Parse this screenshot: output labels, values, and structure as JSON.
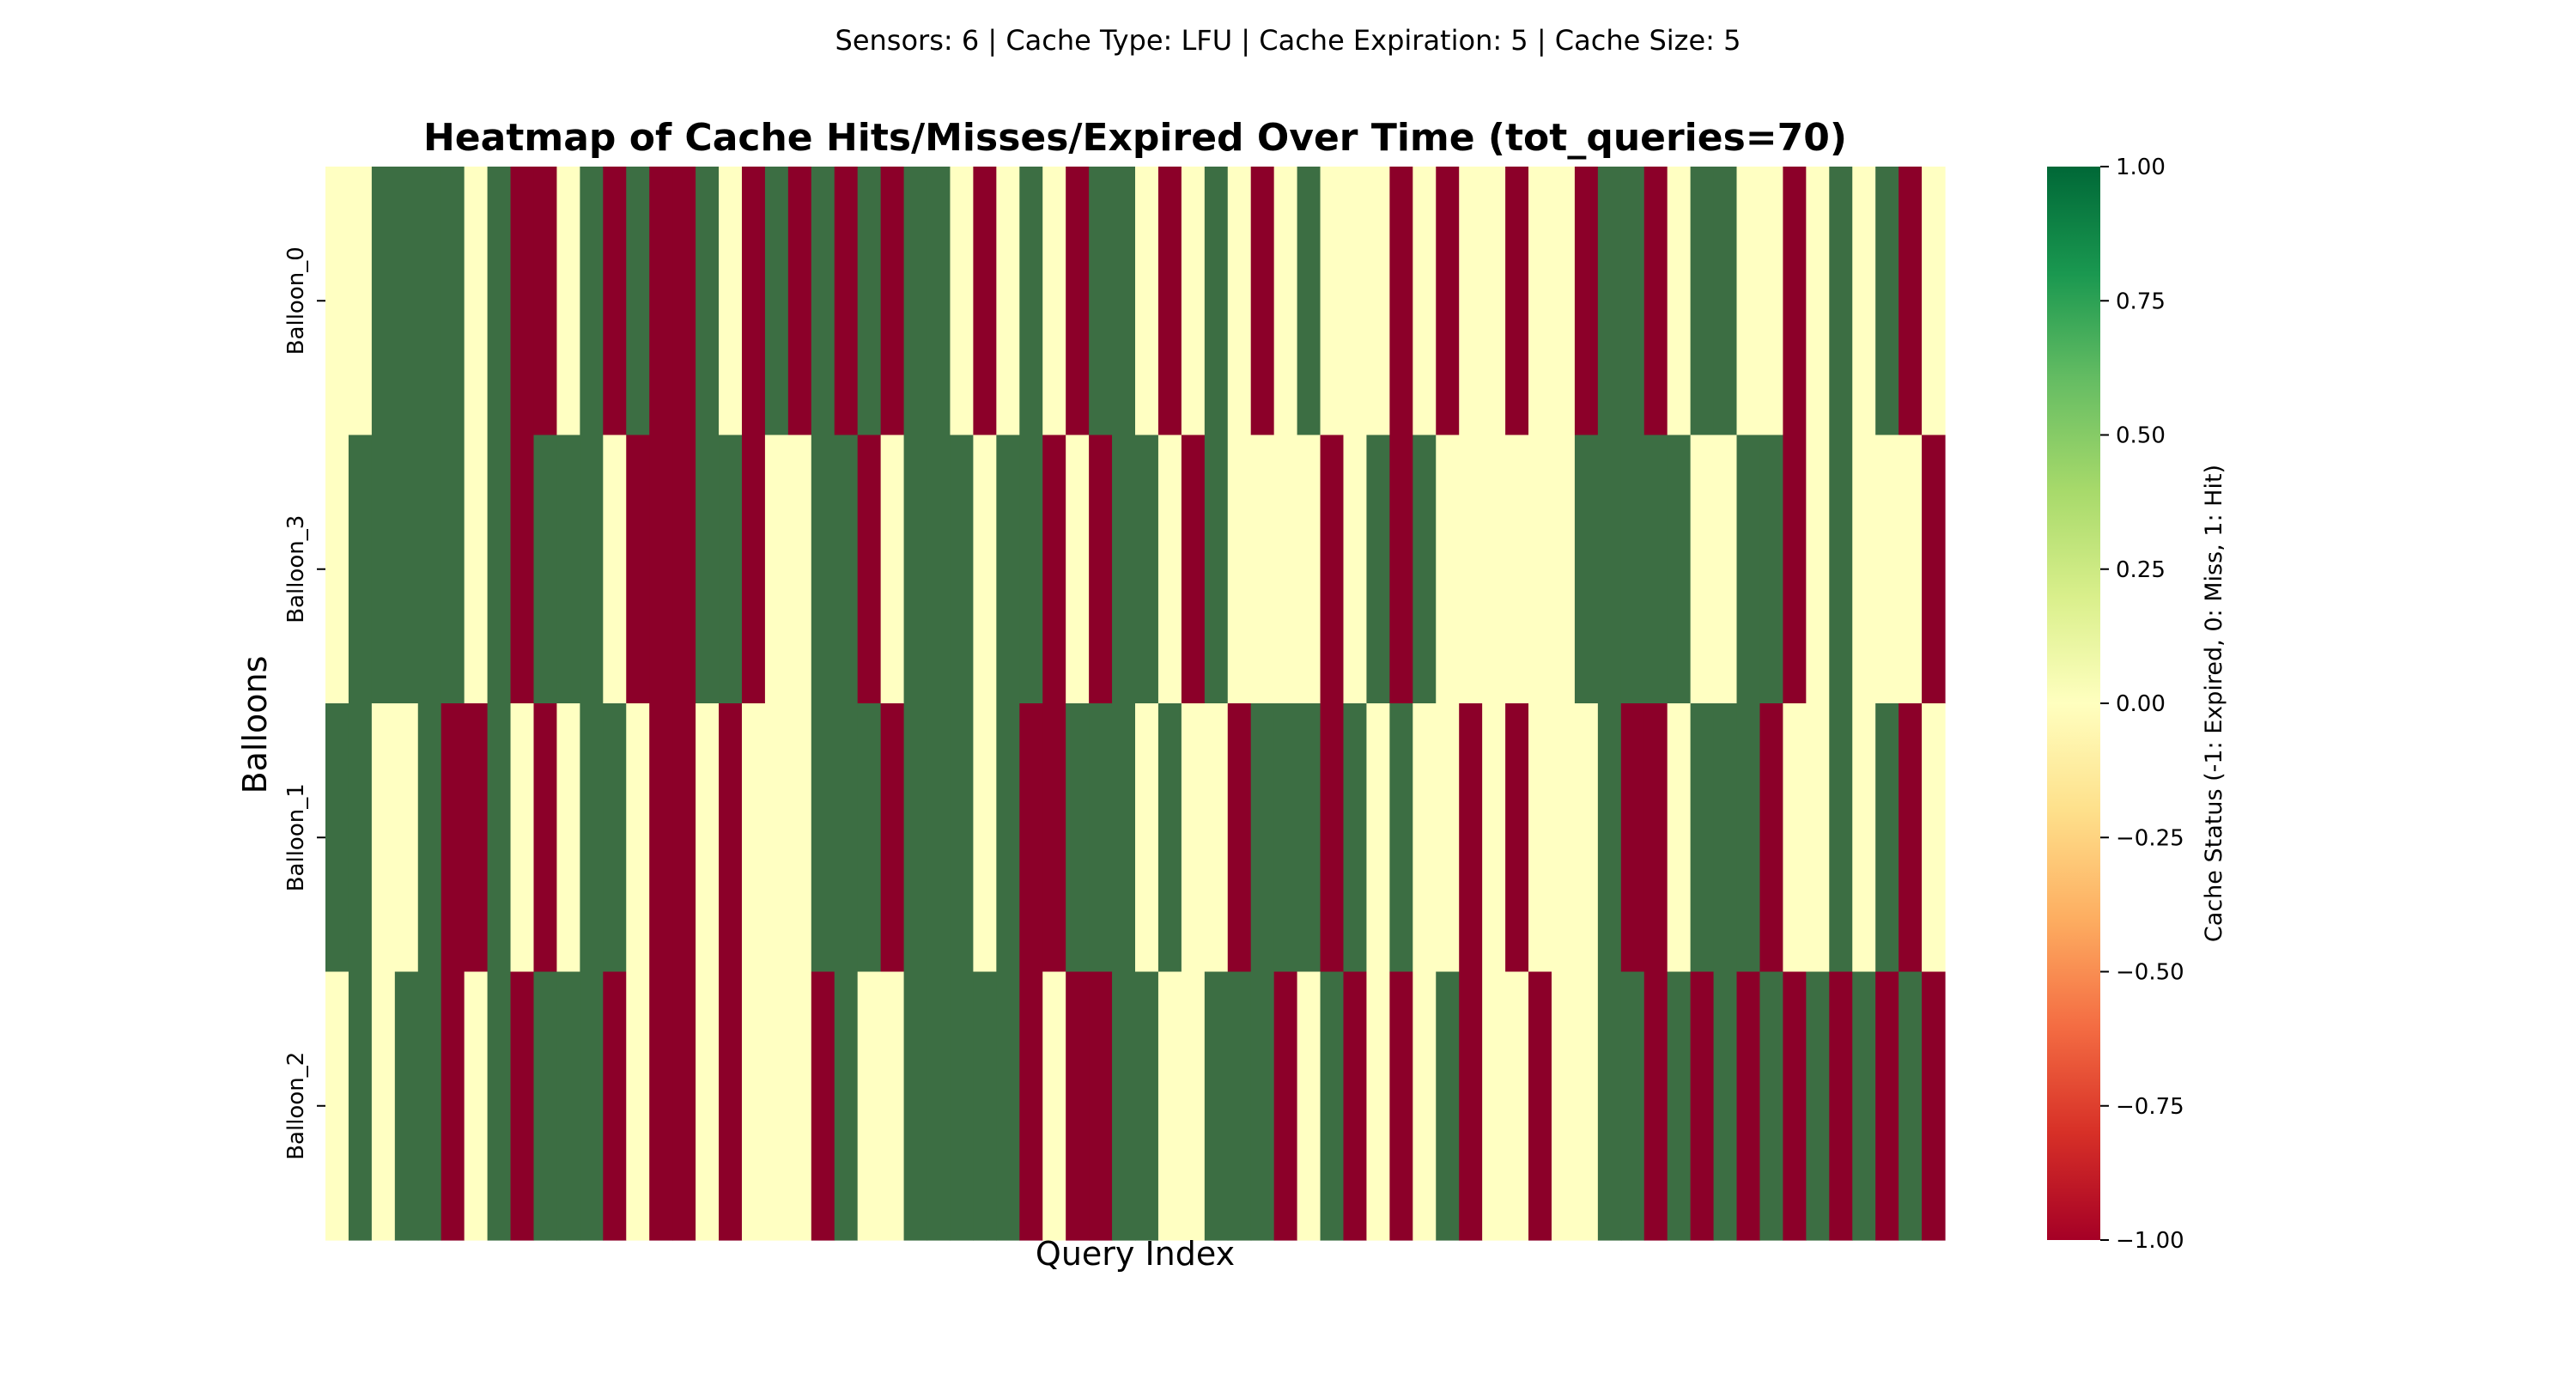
{
  "suptitle": "Sensors: 6 | Cache Type: LFU | Cache Expiration: 5 | Cache Size: 5",
  "chart_data": {
    "type": "heatmap",
    "title": "Heatmap of Cache Hits/Misses/Expired Over Time (tot_queries=70)",
    "xlabel": "Query Index",
    "ylabel": "Balloons",
    "rows": [
      "Balloon_0",
      "Balloon_3",
      "Balloon_1",
      "Balloon_2"
    ],
    "num_columns": 70,
    "values": [
      [
        0,
        0,
        1,
        1,
        1,
        1,
        0,
        1,
        -1,
        -1,
        0,
        1,
        -1,
        1,
        -1,
        -1,
        1,
        0,
        -1,
        1,
        -1,
        1,
        -1,
        1,
        -1,
        1,
        1,
        0,
        -1,
        0,
        1,
        0,
        -1,
        1,
        1,
        0,
        -1,
        0,
        1,
        0,
        -1,
        0,
        1,
        0,
        0,
        0,
        -1,
        0,
        -1,
        0,
        0,
        -1,
        0,
        0,
        -1,
        1,
        1,
        -1,
        0,
        1,
        1,
        0,
        0,
        -1,
        0,
        1,
        0,
        1,
        -1,
        0
      ],
      [
        0,
        1,
        1,
        1,
        1,
        1,
        0,
        1,
        -1,
        1,
        1,
        1,
        0,
        -1,
        -1,
        -1,
        1,
        1,
        -1,
        0,
        0,
        1,
        1,
        -1,
        0,
        1,
        1,
        1,
        0,
        1,
        1,
        -1,
        0,
        -1,
        1,
        1,
        0,
        -1,
        1,
        0,
        0,
        0,
        0,
        -1,
        0,
        1,
        -1,
        1,
        0,
        0,
        0,
        0,
        0,
        0,
        1,
        1,
        1,
        1,
        1,
        0,
        0,
        1,
        1,
        -1,
        0,
        1,
        0,
        0,
        0,
        -1
      ],
      [
        1,
        1,
        0,
        0,
        1,
        -1,
        -1,
        1,
        0,
        -1,
        0,
        1,
        1,
        0,
        -1,
        -1,
        0,
        -1,
        0,
        0,
        0,
        1,
        1,
        1,
        -1,
        1,
        1,
        1,
        0,
        1,
        -1,
        -1,
        1,
        1,
        1,
        0,
        1,
        0,
        0,
        -1,
        1,
        1,
        1,
        -1,
        1,
        0,
        1,
        0,
        0,
        -1,
        0,
        -1,
        0,
        0,
        0,
        1,
        -1,
        -1,
        0,
        1,
        1,
        1,
        -1,
        0,
        0,
        1,
        0,
        1,
        -1,
        0
      ],
      [
        0,
        1,
        0,
        1,
        1,
        -1,
        0,
        1,
        -1,
        1,
        1,
        1,
        -1,
        0,
        -1,
        -1,
        0,
        -1,
        0,
        0,
        0,
        -1,
        1,
        0,
        0,
        1,
        1,
        1,
        1,
        1,
        -1,
        0,
        -1,
        -1,
        1,
        1,
        0,
        0,
        1,
        1,
        1,
        -1,
        0,
        1,
        -1,
        0,
        -1,
        0,
        1,
        -1,
        0,
        0,
        -1,
        0,
        0,
        1,
        1,
        -1,
        1,
        -1,
        1,
        -1,
        1,
        -1,
        1,
        -1,
        1,
        -1,
        1,
        -1
      ]
    ],
    "zlim": [
      -1.0,
      1.0
    ],
    "colormap": "RdYlGn",
    "colorbar": {
      "label": "Cache Status (-1: Expired, 0: Miss, 1: Hit)",
      "ticks": [
        1.0,
        0.75,
        0.5,
        0.25,
        0.0,
        -0.25,
        -0.5,
        -0.75,
        -1.0
      ],
      "tick_labels": [
        "1.00",
        "0.75",
        "0.50",
        "0.25",
        "0.00",
        "−0.25",
        "−0.50",
        "−0.75",
        "−1.00"
      ]
    },
    "colors": {
      "expired": "#a50026",
      "miss": "#ffffbf",
      "hit": "#006837"
    }
  }
}
